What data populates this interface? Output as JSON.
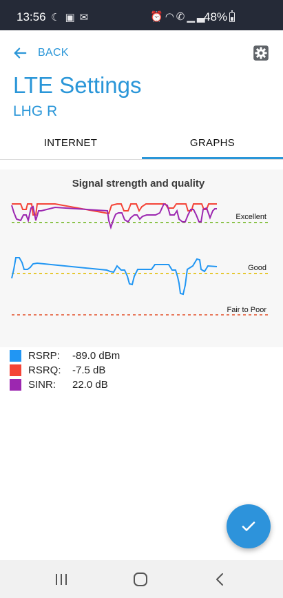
{
  "status_bar": {
    "time": "13:56",
    "battery": "48%",
    "left_icons": [
      "moon-icon",
      "image-icon",
      "gmail-icon"
    ],
    "right_icons": [
      "alarm-icon",
      "wifi-icon",
      "wifi-call-icon",
      "signal-icon"
    ]
  },
  "header": {
    "back_label": "BACK",
    "title": "LTE Settings",
    "subtitle": "LHG R"
  },
  "tabs": [
    {
      "label": "INTERNET",
      "active": false
    },
    {
      "label": "GRAPHS",
      "active": true
    }
  ],
  "chart_data": {
    "type": "line",
    "title": "Signal strength and quality",
    "threshold_lines": [
      {
        "label": "Excellent",
        "color": "#8bc34a"
      },
      {
        "label": "Good",
        "color": "#e6c832"
      },
      {
        "label": "Fair to Poor",
        "color": "#e8795c"
      }
    ],
    "series": [
      {
        "name": "RSRP",
        "color": "#2196f3"
      },
      {
        "name": "RSRQ",
        "color": "#f44336"
      },
      {
        "name": "SINR",
        "color": "#9c27b0"
      }
    ]
  },
  "legend": [
    {
      "label": "RSRP:",
      "value": "-89.0 dBm",
      "color": "#2196f3"
    },
    {
      "label": "RSRQ:",
      "value": "-7.5 dB",
      "color": "#f44336"
    },
    {
      "label": "SINR:",
      "value": "22.0 dB",
      "color": "#9c27b0"
    }
  ],
  "colors": {
    "accent": "#2a96d8",
    "status_bar": "#252a37",
    "fab": "#2d93db"
  },
  "fab_icon": "check-icon",
  "nav": [
    "recent-apps-icon",
    "home-icon",
    "back-nav-icon"
  ]
}
